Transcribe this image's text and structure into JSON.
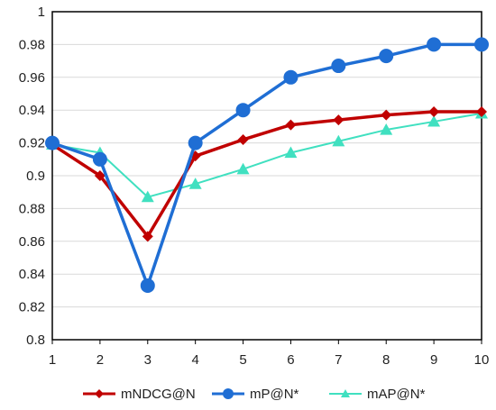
{
  "chart_data": {
    "type": "line",
    "title": "",
    "xlabel": "",
    "ylabel": "",
    "x": [
      1,
      2,
      3,
      4,
      5,
      6,
      7,
      8,
      9,
      10
    ],
    "xlim": [
      1,
      10
    ],
    "ylim": [
      0.8,
      1.0
    ],
    "yticks": [
      "0.8",
      "0.82",
      "0.84",
      "0.86",
      "0.88",
      "0.9",
      "0.92",
      "0.94",
      "0.96",
      "0.98",
      "1"
    ],
    "xticks": [
      "1",
      "2",
      "3",
      "4",
      "5",
      "6",
      "7",
      "8",
      "9",
      "10"
    ],
    "grid": "horizontal",
    "legend_position": "bottom",
    "series": [
      {
        "name": "mNDCG@N",
        "color": "#c00000",
        "marker": "diamond",
        "values": [
          0.919,
          0.9,
          0.863,
          0.912,
          0.922,
          0.931,
          0.934,
          0.937,
          0.939,
          0.939
        ]
      },
      {
        "name": "mP@N*",
        "color": "#1f6ed4",
        "marker": "circle",
        "values": [
          0.92,
          0.91,
          0.833,
          0.92,
          0.94,
          0.96,
          0.967,
          0.973,
          0.98,
          0.98
        ]
      },
      {
        "name": "mAP@N*",
        "color": "#40e0c0",
        "marker": "triangle",
        "values": [
          0.919,
          0.914,
          0.887,
          0.895,
          0.904,
          0.914,
          0.921,
          0.928,
          0.933,
          0.938
        ]
      }
    ]
  }
}
